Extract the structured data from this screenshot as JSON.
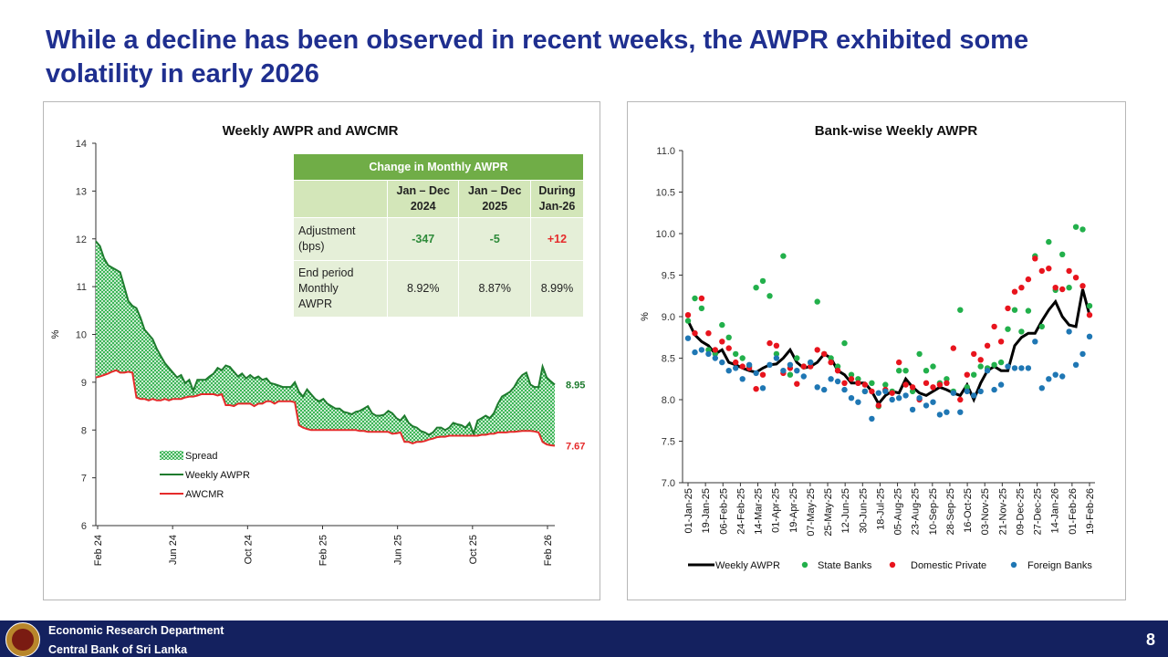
{
  "slide": {
    "title": "While a decline has been observed in recent weeks, the AWPR exhibited some volatility in early 2026",
    "footer_line1": "Economic Research Department",
    "footer_line2": "Central Bank of Sri Lanka",
    "page_number": "8"
  },
  "change_table": {
    "title": "Change in Monthly AWPR",
    "col_headers": [
      {
        "l1": "Jan – Dec",
        "l2": "2024"
      },
      {
        "l1": "Jan – Dec",
        "l2": "2025"
      },
      {
        "l1": "During",
        "l2": "Jan-26"
      }
    ],
    "rows": [
      {
        "label_l1": "Adjustment",
        "label_l2": "(bps)",
        "label_l3": "",
        "values": [
          "-347",
          "-5",
          "+12"
        ]
      },
      {
        "label_l1": "End period",
        "label_l2": "Monthly",
        "label_l3": "AWPR",
        "values": [
          "8.92%",
          "8.87%",
          "8.99%"
        ]
      }
    ]
  },
  "colors": {
    "title_blue": "#1f2f8f",
    "awpr_green": "#1e7b2e",
    "awcmr_red": "#e52b2b",
    "spread_green": "#2eb04a",
    "state_banks": "#22b04b",
    "domestic_private": "#e8141d",
    "foreign_banks": "#1f77b4",
    "footer_navy": "#14215f",
    "table_header": "#70ad47"
  },
  "chart_data": [
    {
      "type": "area",
      "title": "Weekly AWPR and AWCMR",
      "ylabel": "%",
      "ylim": [
        6,
        14
      ],
      "yticks": [
        "6",
        "7",
        "8",
        "9",
        "10",
        "11",
        "12",
        "13",
        "14"
      ],
      "x_tick_labels": [
        "Feb 24",
        "Jun 24",
        "Oct 24",
        "Feb 25",
        "Jun 25",
        "Oct 25",
        "Feb 26"
      ],
      "legend": [
        "Spread",
        "Weekly AWPR",
        "AWCMR"
      ],
      "legend_position": "bottom-left",
      "end_labels": [
        "8.95",
        "7.67"
      ],
      "series": [
        {
          "name": "Weekly AWPR",
          "values": [
            11.95,
            11.85,
            11.6,
            11.45,
            11.4,
            11.35,
            11.3,
            11.0,
            10.7,
            10.6,
            10.55,
            10.35,
            10.1,
            10.0,
            9.9,
            9.7,
            9.55,
            9.4,
            9.3,
            9.2,
            9.1,
            9.15,
            8.98,
            9.05,
            8.82,
            9.05,
            9.05,
            9.05,
            9.12,
            9.18,
            9.3,
            9.25,
            9.35,
            9.32,
            9.22,
            9.12,
            9.18,
            9.08,
            9.15,
            9.08,
            9.12,
            9.05,
            9.08,
            8.98,
            8.96,
            8.93,
            8.9,
            8.9,
            8.9,
            9.0,
            8.8,
            8.7,
            8.85,
            8.75,
            8.65,
            8.6,
            8.65,
            8.55,
            8.5,
            8.45,
            8.45,
            8.38,
            8.36,
            8.33,
            8.38,
            8.4,
            8.45,
            8.5,
            8.35,
            8.3,
            8.3,
            8.32,
            8.4,
            8.35,
            8.25,
            8.2,
            8.3,
            8.15,
            8.08,
            8.05,
            7.98,
            7.95,
            7.9,
            7.95,
            8.05,
            8.05,
            8.0,
            8.05,
            8.15,
            8.12,
            8.1,
            8.05,
            8.15,
            7.92,
            8.2,
            8.25,
            8.3,
            8.25,
            8.35,
            8.55,
            8.7,
            8.75,
            8.8,
            8.9,
            9.05,
            9.15,
            9.2,
            8.95,
            8.9,
            8.9,
            9.33,
            9.1,
            9.02,
            8.95
          ]
        },
        {
          "name": "AWCMR",
          "values": [
            9.1,
            9.12,
            9.15,
            9.18,
            9.22,
            9.25,
            9.2,
            9.2,
            9.22,
            9.2,
            8.68,
            8.65,
            8.65,
            8.62,
            8.65,
            8.62,
            8.62,
            8.65,
            8.62,
            8.65,
            8.65,
            8.65,
            8.68,
            8.7,
            8.7,
            8.72,
            8.75,
            8.75,
            8.75,
            8.75,
            8.72,
            8.75,
            8.52,
            8.52,
            8.5,
            8.55,
            8.55,
            8.55,
            8.55,
            8.5,
            8.55,
            8.55,
            8.6,
            8.6,
            8.55,
            8.6,
            8.6,
            8.6,
            8.6,
            8.58,
            8.1,
            8.05,
            8.02,
            8.0,
            8.0,
            8.0,
            8.0,
            8.0,
            8.0,
            8.0,
            8.0,
            8.0,
            8.0,
            8.0,
            8.0,
            7.98,
            7.98,
            7.96,
            7.96,
            7.96,
            7.96,
            7.96,
            7.96,
            7.92,
            7.93,
            7.95,
            7.75,
            7.75,
            7.72,
            7.75,
            7.75,
            7.77,
            7.8,
            7.82,
            7.85,
            7.86,
            7.86,
            7.88,
            7.88,
            7.88,
            7.88,
            7.88,
            7.88,
            7.88,
            7.88,
            7.9,
            7.9,
            7.92,
            7.92,
            7.95,
            7.95,
            7.95,
            7.96,
            7.96,
            7.97,
            7.98,
            7.98,
            7.98,
            7.97,
            7.95,
            7.75,
            7.7,
            7.68,
            7.67
          ]
        }
      ]
    },
    {
      "type": "scatter",
      "title": "Bank-wise Weekly AWPR",
      "ylabel": "%",
      "ylim": [
        7.0,
        11.0
      ],
      "yticks": [
        "7.0",
        "7.5",
        "8.0",
        "8.5",
        "9.0",
        "9.5",
        "10.0",
        "10.5",
        "11.0"
      ],
      "x": [
        "01-Jan-25",
        "08-Jan-25",
        "15-Jan-25",
        "22-Jan-25",
        "29-Jan-25",
        "05-Feb-25",
        "12-Feb-25",
        "19-Feb-25",
        "26-Feb-25",
        "05-Mar-25",
        "12-Mar-25",
        "19-Mar-25",
        "26-Mar-25",
        "02-Apr-25",
        "09-Apr-25",
        "16-Apr-25",
        "23-Apr-25",
        "30-Apr-25",
        "07-May-25",
        "14-May-25",
        "21-May-25",
        "28-May-25",
        "04-Jun-25",
        "11-Jun-25",
        "18-Jun-25",
        "25-Jun-25",
        "02-Jul-25",
        "09-Jul-25",
        "16-Jul-25",
        "23-Jul-25",
        "30-Jul-25",
        "06-Aug-25",
        "13-Aug-25",
        "20-Aug-25",
        "27-Aug-25",
        "03-Sep-25",
        "10-Sep-25",
        "17-Sep-25",
        "24-Sep-25",
        "01-Oct-25",
        "08-Oct-25",
        "15-Oct-25",
        "22-Oct-25",
        "29-Oct-25",
        "05-Nov-25",
        "12-Nov-25",
        "19-Nov-25",
        "26-Nov-25",
        "03-Dec-25",
        "10-Dec-25",
        "17-Dec-25",
        "24-Dec-25",
        "31-Dec-25",
        "07-Jan-26",
        "14-Jan-26",
        "21-Jan-26",
        "28-Jan-26",
        "04-Feb-26",
        "11-Feb-26",
        "18-Feb-26"
      ],
      "x_tick_labels": [
        "01-Jan-25",
        "19-Jan-25",
        "06-Feb-25",
        "24-Feb-25",
        "14-Mar-25",
        "01-Apr-25",
        "19-Apr-25",
        "07-May-25",
        "25-May-25",
        "12-Jun-25",
        "30-Jun-25",
        "18-Jul-25",
        "05-Aug-25",
        "23-Aug-25",
        "10-Sep-25",
        "28-Sep-25",
        "16-Oct-25",
        "03-Nov-25",
        "21-Nov-25",
        "09-Dec-25",
        "27-Dec-25",
        "14-Jan-26",
        "01-Feb-26",
        "19-Feb-26"
      ],
      "legend": [
        "Weekly AWPR",
        "State Banks",
        "Domestic Private",
        "Foreign Banks"
      ],
      "legend_position": "bottom",
      "series": [
        {
          "name": "Weekly AWPR",
          "values": [
            8.95,
            8.78,
            8.7,
            8.65,
            8.55,
            8.6,
            8.45,
            8.42,
            8.38,
            8.35,
            8.33,
            8.38,
            8.42,
            8.43,
            8.5,
            8.6,
            8.45,
            8.38,
            8.4,
            8.45,
            8.55,
            8.5,
            8.35,
            8.3,
            8.2,
            8.2,
            8.2,
            8.1,
            7.95,
            8.05,
            8.1,
            8.08,
            8.25,
            8.15,
            8.08,
            8.05,
            8.1,
            8.15,
            8.12,
            8.08,
            8.05,
            8.18,
            8.0,
            8.2,
            8.35,
            8.4,
            8.35,
            8.35,
            8.65,
            8.75,
            8.8,
            8.8,
            8.95,
            9.08,
            9.18,
            9.0,
            8.9,
            8.88,
            9.33,
            9.02
          ]
        },
        {
          "name": "State Banks",
          "values": [
            8.95,
            9.22,
            9.1,
            8.6,
            8.55,
            8.9,
            8.75,
            8.55,
            8.5,
            8.4,
            9.35,
            9.43,
            9.25,
            8.55,
            9.73,
            8.3,
            8.5,
            8.4,
            8.45,
            9.18,
            8.55,
            8.5,
            8.4,
            8.68,
            8.3,
            8.25,
            8.1,
            8.2,
            7.92,
            8.18,
            8.1,
            8.35,
            8.35,
            8.1,
            8.55,
            8.35,
            8.4,
            8.2,
            8.25,
            8.1,
            9.08,
            8.15,
            8.3,
            8.4,
            8.38,
            8.42,
            8.45,
            8.85,
            9.08,
            8.82,
            9.07,
            9.73,
            8.88,
            9.9,
            9.32,
            9.75,
            9.35,
            10.08,
            10.05,
            9.13
          ]
        },
        {
          "name": "Domestic Private",
          "values": [
            9.02,
            8.8,
            9.22,
            8.8,
            8.6,
            8.7,
            8.62,
            8.45,
            8.4,
            8.38,
            8.13,
            8.3,
            8.68,
            8.65,
            8.32,
            8.38,
            8.19,
            8.4,
            8.4,
            8.6,
            8.55,
            8.45,
            8.35,
            8.2,
            8.25,
            8.2,
            8.18,
            8.1,
            7.93,
            8.12,
            8.08,
            8.45,
            8.18,
            8.15,
            8.0,
            8.2,
            8.15,
            8.18,
            8.2,
            8.62,
            8.0,
            8.3,
            8.55,
            8.48,
            8.65,
            8.88,
            8.7,
            9.1,
            9.3,
            9.35,
            9.45,
            9.7,
            9.55,
            9.58,
            9.35,
            9.33,
            9.55,
            9.47,
            9.37,
            9.02
          ]
        },
        {
          "name": "Foreign Banks",
          "values": [
            8.74,
            8.57,
            8.6,
            8.55,
            8.5,
            8.45,
            8.35,
            8.38,
            8.25,
            8.42,
            8.32,
            8.14,
            8.42,
            8.5,
            8.35,
            8.42,
            8.35,
            8.28,
            8.45,
            8.15,
            8.12,
            8.25,
            8.22,
            8.12,
            8.02,
            7.97,
            8.1,
            7.77,
            8.08,
            8.1,
            8.0,
            8.02,
            8.05,
            7.88,
            8.02,
            7.93,
            7.97,
            7.82,
            7.85,
            8.08,
            7.85,
            8.1,
            8.05,
            8.1,
            8.35,
            8.12,
            8.18,
            8.4,
            8.38,
            8.38,
            8.38,
            8.7,
            8.14,
            8.25,
            8.3,
            8.28,
            8.82,
            8.42,
            8.55,
            8.76
          ]
        }
      ]
    }
  ]
}
